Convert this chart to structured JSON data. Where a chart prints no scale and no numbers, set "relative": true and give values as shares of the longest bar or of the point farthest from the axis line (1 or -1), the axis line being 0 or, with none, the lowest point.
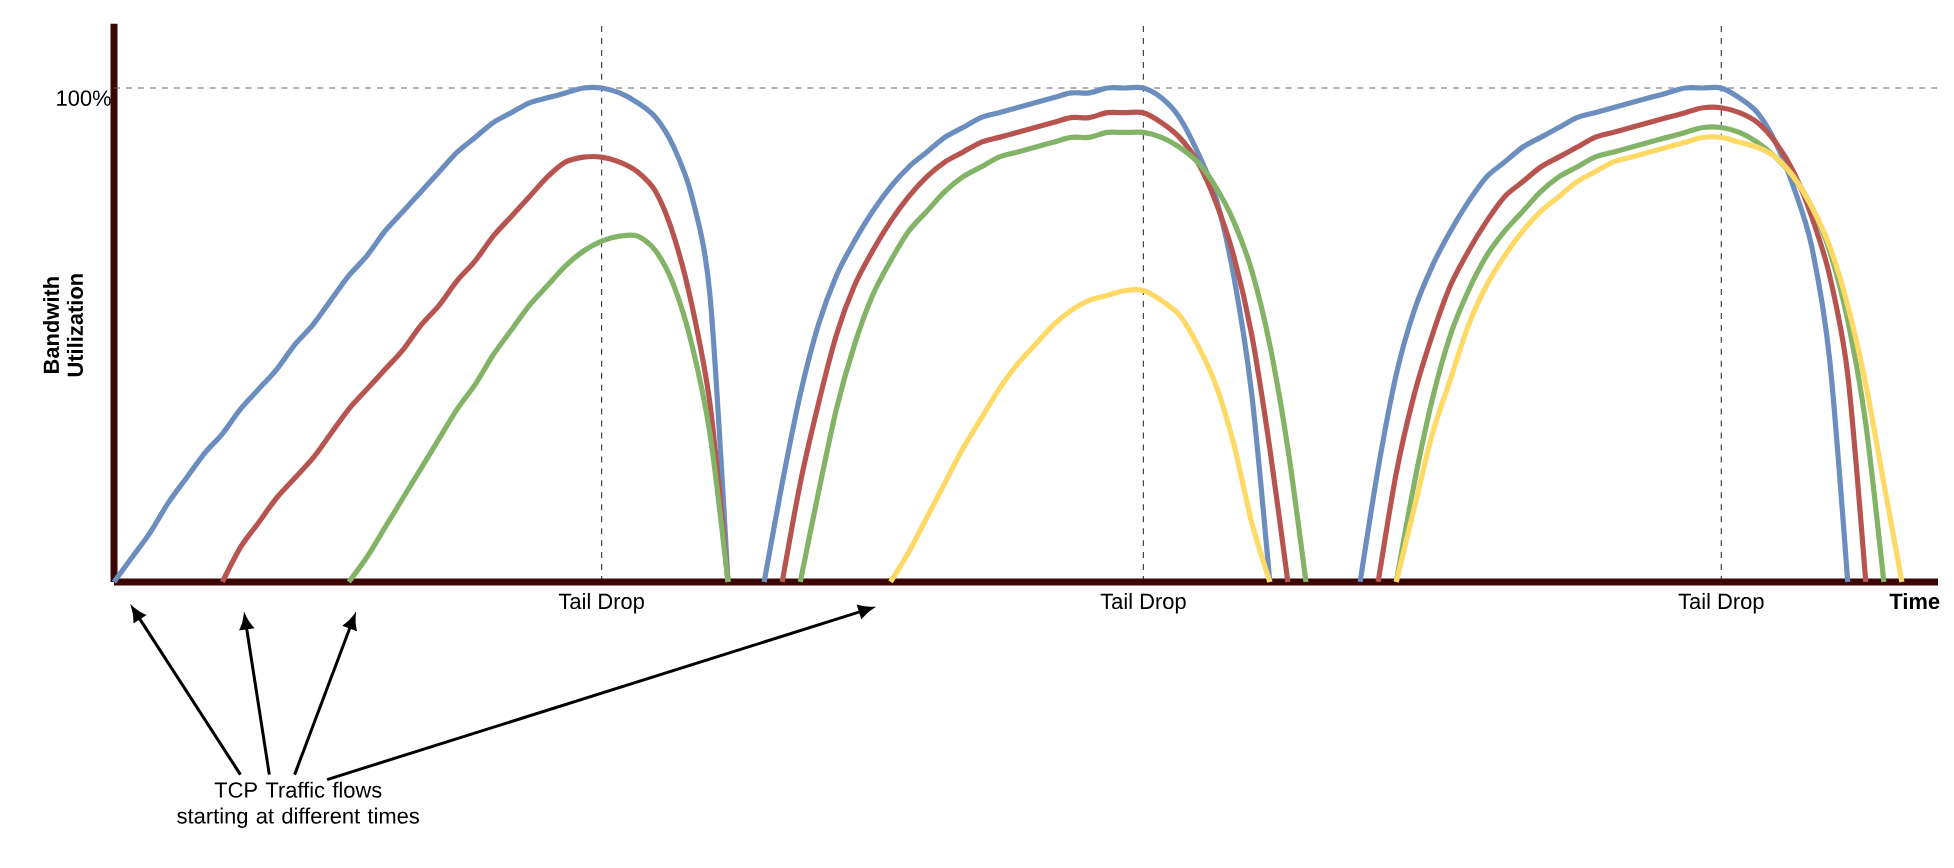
{
  "chart_data": {
    "type": "line",
    "relative": true,
    "ylabel": "Bandwith Utilization",
    "xlabel": "Time",
    "marker": "none",
    "grid": "x",
    "categories": [
      null,
      null,
      null,
      null,
      null,
      null,
      null,
      null,
      null,
      null,
      null,
      null,
      null,
      null,
      null,
      null,
      null,
      null,
      null,
      null,
      null,
      null,
      null,
      null,
      null,
      null,
      null,
      "Tail Drop",
      null,
      null,
      null,
      null,
      null,
      null,
      null,
      null,
      null,
      null,
      null,
      null,
      null,
      null,
      null,
      null,
      null,
      null,
      null,
      null,
      null,
      null,
      null,
      null,
      null,
      null,
      null,
      null,
      null,
      "Tail Drop",
      null,
      null,
      null,
      null,
      null,
      null,
      null,
      null,
      null,
      null,
      null,
      null,
      null,
      null,
      null,
      null,
      null,
      null,
      null,
      null,
      null,
      null,
      null,
      null,
      null,
      null,
      null,
      null,
      null,
      null,
      null,
      "Tail Drop",
      null,
      null,
      null,
      null,
      null,
      null,
      null,
      null,
      null,
      null,
      null,
      null
    ],
    "ref_lines": [
      {
        "axis": "y",
        "value": 1,
        "label": "100%",
        "line_style": "dashed",
        "color": "#666666"
      }
    ],
    "annotations": [
      "TCP Traffic flows starting at different times"
    ],
    "series": [
      {
        "color": "#6c8ebf",
        "values": [
          0,
          0.05,
          0.1,
          0.16,
          0.21,
          0.26,
          0.3,
          0.35,
          0.39,
          0.43,
          0.48,
          0.52,
          0.57,
          0.62,
          0.66,
          0.71,
          0.75,
          0.79,
          0.83,
          0.87,
          0.9,
          0.93,
          0.95,
          0.97,
          0.98,
          0.99,
          1.0,
          1.0,
          0.99,
          0.97,
          0.94,
          0.88,
          0.78,
          0.58,
          0,
          null,
          0,
          0.2,
          0.38,
          0.52,
          0.62,
          0.69,
          0.75,
          0.8,
          0.84,
          0.87,
          0.9,
          0.92,
          0.94,
          0.95,
          0.96,
          0.97,
          0.98,
          0.99,
          0.99,
          1.0,
          1.0,
          1.0,
          0.98,
          0.94,
          0.87,
          0.78,
          0.62,
          0.38,
          0,
          null,
          null,
          null,
          null,
          0,
          0.23,
          0.42,
          0.55,
          0.64,
          0.71,
          0.77,
          0.82,
          0.85,
          0.88,
          0.9,
          0.92,
          0.94,
          0.95,
          0.96,
          0.97,
          0.98,
          0.99,
          1.0,
          1.0,
          1.0,
          0.98,
          0.95,
          0.89,
          0.8,
          0.68,
          0.45,
          0,
          null,
          null,
          null,
          null,
          null
        ]
      },
      {
        "color": "#b85450",
        "values": [
          null,
          null,
          null,
          null,
          null,
          null,
          0,
          0.07,
          0.12,
          0.17,
          0.21,
          0.25,
          0.3,
          0.35,
          0.39,
          0.43,
          0.47,
          0.52,
          0.56,
          0.61,
          0.65,
          0.7,
          0.74,
          0.78,
          0.82,
          0.85,
          0.86,
          0.86,
          0.85,
          0.83,
          0.79,
          0.7,
          0.56,
          0.36,
          0,
          null,
          null,
          0,
          0.2,
          0.36,
          0.5,
          0.6,
          0.67,
          0.73,
          0.78,
          0.82,
          0.85,
          0.87,
          0.89,
          0.9,
          0.91,
          0.92,
          0.93,
          0.94,
          0.94,
          0.95,
          0.95,
          0.95,
          0.93,
          0.9,
          0.85,
          0.77,
          0.66,
          0.5,
          0.27,
          0,
          null,
          null,
          null,
          null,
          0,
          0.22,
          0.38,
          0.5,
          0.6,
          0.67,
          0.73,
          0.78,
          0.81,
          0.84,
          0.86,
          0.88,
          0.9,
          0.91,
          0.92,
          0.93,
          0.94,
          0.95,
          0.96,
          0.96,
          0.95,
          0.93,
          0.89,
          0.83,
          0.74,
          0.62,
          0.42,
          0,
          null,
          null,
          null,
          null
        ]
      },
      {
        "color": "#82b366",
        "values": [
          null,
          null,
          null,
          null,
          null,
          null,
          null,
          null,
          null,
          null,
          null,
          null,
          null,
          0,
          0.05,
          0.11,
          0.17,
          0.23,
          0.29,
          0.35,
          0.4,
          0.46,
          0.51,
          0.56,
          0.6,
          0.64,
          0.67,
          0.69,
          0.7,
          0.7,
          0.67,
          0.6,
          0.48,
          0.3,
          0,
          null,
          null,
          null,
          0,
          0.18,
          0.35,
          0.48,
          0.58,
          0.65,
          0.71,
          0.75,
          0.79,
          0.82,
          0.84,
          0.86,
          0.87,
          0.88,
          0.89,
          0.9,
          0.9,
          0.91,
          0.91,
          0.91,
          0.9,
          0.88,
          0.85,
          0.8,
          0.73,
          0.63,
          0.48,
          0.27,
          0,
          null,
          null,
          null,
          null,
          0,
          0.2,
          0.37,
          0.5,
          0.59,
          0.66,
          0.71,
          0.75,
          0.79,
          0.82,
          0.84,
          0.86,
          0.87,
          0.88,
          0.89,
          0.9,
          0.91,
          0.92,
          0.92,
          0.91,
          0.89,
          0.86,
          0.82,
          0.76,
          0.67,
          0.53,
          0.32,
          0,
          null,
          null,
          null
        ]
      },
      {
        "color": "#ffd966",
        "values": [
          null,
          null,
          null,
          null,
          null,
          null,
          null,
          null,
          null,
          null,
          null,
          null,
          null,
          null,
          null,
          null,
          null,
          null,
          null,
          null,
          null,
          null,
          null,
          null,
          null,
          null,
          null,
          null,
          null,
          null,
          null,
          null,
          null,
          null,
          null,
          null,
          null,
          null,
          null,
          null,
          null,
          null,
          null,
          0,
          0.06,
          0.13,
          0.2,
          0.27,
          0.33,
          0.39,
          0.44,
          0.48,
          0.52,
          0.55,
          0.57,
          0.58,
          0.59,
          0.59,
          0.57,
          0.54,
          0.48,
          0.4,
          0.28,
          0.12,
          0,
          null,
          null,
          null,
          null,
          null,
          null,
          0,
          0.15,
          0.3,
          0.41,
          0.52,
          0.6,
          0.66,
          0.71,
          0.75,
          0.78,
          0.81,
          0.83,
          0.85,
          0.86,
          0.87,
          0.88,
          0.89,
          0.9,
          0.9,
          0.89,
          0.88,
          0.86,
          0.82,
          0.76,
          0.68,
          0.56,
          0.4,
          0.2,
          0,
          null,
          null
        ]
      }
    ]
  }
}
